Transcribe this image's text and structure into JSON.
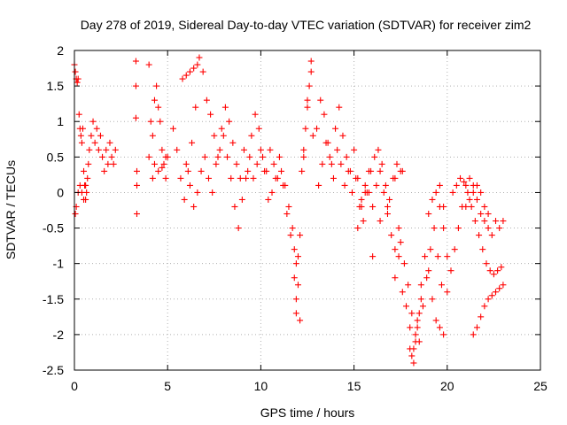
{
  "chart_data": {
    "type": "scatter",
    "title": "Day 278 of 2019, Sidereal Day-to-day VTEC variation (SDTVAR) for receiver zim2",
    "xlabel": "GPS time / hours",
    "ylabel": "SDTVAR / TECUs",
    "xlim": [
      0,
      25
    ],
    "ylim": [
      -2.5,
      2
    ],
    "xticks": [
      0,
      5,
      10,
      15,
      20,
      25
    ],
    "xtick_labels": [
      "0",
      "5",
      "10",
      "15",
      "20",
      "25"
    ],
    "yticks": [
      2,
      1.5,
      1,
      0.5,
      0,
      -0.5,
      -1,
      -1.5,
      -2,
      -2.5
    ],
    "ytick_labels": [
      "2",
      "1.5",
      "1",
      "0.5",
      "0",
      "-0.5",
      "-1",
      "-1.5",
      "-2",
      "-2.5"
    ],
    "grid": true,
    "marker": "+",
    "color": "#ff0000",
    "series": [
      {
        "name": "SDTVAR",
        "x": [
          0.0,
          0.05,
          0.1,
          0.15,
          0.2,
          0.25,
          0.3,
          0.35,
          0.4,
          0.45,
          0.5,
          0.55,
          0.6,
          0.65,
          0.7,
          0.75,
          0.8,
          0.9,
          1.0,
          1.1,
          1.2,
          1.3,
          1.4,
          1.5,
          1.6,
          1.7,
          1.8,
          1.9,
          2.0,
          2.1,
          2.2,
          0.05,
          0.1,
          0.2,
          0.3,
          0.4,
          0.5,
          0.6,
          3.3,
          3.3,
          3.3,
          3.35,
          3.35,
          3.35,
          4.0,
          4.0,
          4.1,
          4.2,
          4.3,
          4.4,
          4.5,
          4.6,
          4.7,
          4.8,
          4.9,
          5.0,
          4.2,
          4.3,
          4.5,
          4.7,
          4.9,
          5.3,
          5.5,
          5.7,
          5.9,
          6.1,
          6.3,
          6.5,
          6.7,
          6.9,
          7.1,
          7.3,
          7.5,
          7.7,
          7.9,
          8.1,
          8.3,
          8.5,
          8.7,
          8.9,
          9.1,
          9.3,
          6.0,
          6.2,
          6.4,
          6.6,
          6.8,
          7.0,
          7.2,
          7.4,
          7.6,
          7.8,
          8.0,
          8.2,
          8.4,
          8.6,
          8.8,
          9.0,
          9.2,
          9.4,
          5.8,
          6.0,
          6.2,
          6.4,
          6.6,
          9.5,
          9.7,
          9.9,
          10.1,
          10.3,
          10.5,
          10.7,
          10.9,
          11.1,
          11.3,
          11.5,
          11.7,
          11.9,
          12.1,
          12.3,
          12.5,
          12.7,
          9.6,
          9.8,
          10.0,
          10.2,
          10.4,
          10.6,
          10.8,
          11.0,
          11.2,
          11.4,
          11.6,
          11.8,
          11.8,
          11.9,
          11.9,
          12.0,
          12.0,
          12.1,
          12.2,
          12.3,
          12.4,
          12.5,
          12.6,
          12.7,
          12.8,
          13.0,
          13.2,
          13.4,
          13.6,
          13.8,
          14.0,
          14.2,
          14.4,
          14.6,
          14.8,
          15.0,
          15.2,
          15.4,
          15.6,
          15.8,
          13.1,
          13.3,
          13.5,
          13.7,
          13.9,
          14.1,
          14.3,
          14.5,
          14.7,
          14.9,
          15.1,
          15.3,
          15.5,
          15.7,
          15.9,
          16.1,
          16.3,
          16.5,
          16.7,
          16.9,
          17.1,
          17.3,
          17.5,
          15.2,
          15.4,
          15.6,
          15.8,
          16.0,
          16.2,
          16.4,
          16.6,
          16.8,
          17.0,
          17.2,
          17.4,
          16.0,
          16.4,
          16.8,
          17.2,
          17.6,
          17.2,
          17.4,
          17.6,
          17.8,
          18.0,
          18.2,
          18.4,
          18.6,
          18.8,
          19.0,
          19.2,
          19.4,
          19.6,
          19.8,
          20.0,
          17.5,
          17.7,
          17.9,
          18.1,
          18.3,
          18.5,
          18.7,
          18.9,
          19.1,
          19.3,
          19.5,
          19.7,
          18.0,
          18.1,
          18.2,
          18.3,
          18.4,
          18.5,
          18.6,
          19.0,
          19.2,
          19.4,
          19.6,
          19.8,
          19.6,
          19.8,
          20.0,
          20.2,
          20.4,
          20.6,
          20.8,
          21.0,
          21.2,
          21.4,
          21.6,
          21.8,
          22.0,
          22.2,
          22.4,
          22.6,
          22.8,
          23.0,
          20.3,
          20.5,
          20.7,
          20.9,
          21.1,
          21.3,
          21.5,
          21.7,
          21.9,
          22.1,
          22.3,
          22.5,
          22.7,
          22.9,
          21.0,
          21.2,
          21.4,
          21.6,
          21.8,
          22.0,
          22.2,
          21.4,
          21.6,
          21.8,
          22.0,
          22.2,
          22.4,
          22.6,
          22.8,
          23.0
        ],
        "y": [
          1.8,
          1.7,
          1.6,
          1.55,
          1.6,
          1.1,
          0.9,
          0.8,
          0.7,
          0.9,
          0.3,
          0.1,
          -0.1,
          0.0,
          0.2,
          0.4,
          0.6,
          0.8,
          1.0,
          0.7,
          0.9,
          0.6,
          0.8,
          0.5,
          0.3,
          0.6,
          0.4,
          0.7,
          0.5,
          0.4,
          0.6,
          -0.3,
          -0.2,
          0.0,
          0.1,
          0.0,
          -0.1,
          0.1,
          1.85,
          1.5,
          1.05,
          0.3,
          0.1,
          -0.3,
          1.8,
          0.5,
          1.0,
          0.8,
          1.3,
          1.5,
          1.2,
          1.0,
          0.6,
          0.4,
          0.2,
          0.5,
          0.2,
          0.4,
          0.3,
          0.35,
          0.5,
          0.9,
          0.6,
          0.2,
          -0.1,
          0.3,
          0.7,
          1.2,
          1.9,
          1.7,
          1.3,
          1.1,
          0.8,
          0.5,
          0.9,
          1.2,
          1.0,
          0.7,
          0.4,
          0.2,
          0.6,
          0.3,
          0.4,
          0.1,
          -0.2,
          0.0,
          0.3,
          0.5,
          0.2,
          0.0,
          0.4,
          0.6,
          0.8,
          0.5,
          0.2,
          -0.2,
          -0.5,
          -0.1,
          0.2,
          0.5,
          1.6,
          1.65,
          1.7,
          1.75,
          1.8,
          0.8,
          1.1,
          0.9,
          0.5,
          0.3,
          0.6,
          0.4,
          0.2,
          0.3,
          0.1,
          -0.2,
          -0.5,
          -1.0,
          -1.8,
          0.5,
          1.3,
          1.85,
          0.2,
          0.4,
          0.6,
          0.3,
          -0.1,
          0.0,
          0.2,
          0.5,
          0.1,
          -0.3,
          -0.6,
          -0.8,
          -1.2,
          -1.5,
          -1.7,
          -1.3,
          -0.9,
          -0.6,
          0.3,
          0.6,
          0.9,
          1.2,
          1.5,
          1.7,
          0.8,
          0.9,
          1.3,
          1.1,
          0.7,
          0.4,
          0.9,
          1.2,
          0.8,
          0.5,
          0.3,
          0.6,
          0.2,
          -0.2,
          0.0,
          0.3,
          0.1,
          0.4,
          0.7,
          0.5,
          0.2,
          0.6,
          0.4,
          0.1,
          0.3,
          0.0,
          0.2,
          -0.2,
          -0.4,
          0.0,
          0.3,
          0.5,
          0.6,
          0.4,
          0.1,
          -0.1,
          0.2,
          0.4,
          0.3,
          -0.5,
          -0.1,
          0.1,
          0.0,
          -0.2,
          0.1,
          0.3,
          0.0,
          -0.3,
          -0.6,
          -0.8,
          -0.5,
          -0.9,
          -0.4,
          -0.2,
          0.2,
          0.3,
          -1.2,
          -0.9,
          -1.4,
          -1.6,
          -1.9,
          -2.2,
          -1.8,
          -1.3,
          -0.9,
          -1.1,
          -1.5,
          -1.8,
          -1.9,
          -2.0,
          -1.4,
          -0.7,
          -1.0,
          -1.3,
          -1.7,
          -2.0,
          -2.1,
          -1.6,
          -1.2,
          -0.8,
          -0.5,
          -0.9,
          -1.3,
          -2.2,
          -2.3,
          -2.4,
          -2.1,
          -1.9,
          -1.7,
          -1.5,
          -0.3,
          -0.1,
          0.0,
          0.1,
          -0.2,
          -0.2,
          -0.5,
          -0.9,
          -1.1,
          -0.8,
          -0.5,
          -0.2,
          0.1,
          0.2,
          0.1,
          -0.1,
          -0.3,
          -0.4,
          -0.5,
          -0.6,
          -0.4,
          -0.5,
          -0.4,
          0.0,
          0.1,
          0.2,
          0.15,
          0.0,
          -0.2,
          -0.4,
          -0.6,
          -0.8,
          -1.0,
          -1.1,
          -1.15,
          -1.1,
          -1.05,
          -0.2,
          -0.1,
          0.0,
          0.1,
          0.0,
          -0.2,
          -0.3,
          -2.0,
          -1.9,
          -1.75,
          -1.6,
          -1.5,
          -1.45,
          -1.4,
          -1.35,
          -1.3
        ]
      }
    ]
  }
}
